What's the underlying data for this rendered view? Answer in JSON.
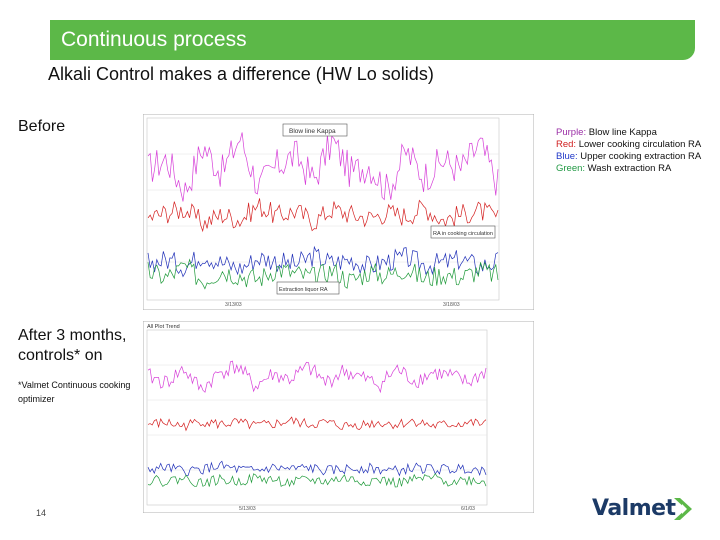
{
  "header": {
    "title": "Continuous process"
  },
  "subtitle": "Alkali Control makes a difference (HW Lo solids)",
  "labels": {
    "before": "Before",
    "after_line1": "After 3 months,",
    "after_line2": "controls* on",
    "footnote_line1": "*Valmet Continuous cooking",
    "footnote_line2": "optimizer"
  },
  "legend": [
    {
      "key": "Purple:",
      "text": " Blow line Kappa",
      "color": "#9b2fa6"
    },
    {
      "key": "Red:",
      "text": " Lower cooking circulation RA",
      "color": "#d02020"
    },
    {
      "key": "Blue:",
      "text": " Upper cooking extraction RA",
      "color": "#2038c8"
    },
    {
      "key": "Green:",
      "text": " Wash extraction RA",
      "color": "#229944"
    }
  ],
  "chart_before": {
    "annotations": [
      "Blow line Kappa",
      "RA in cooking circulation",
      "Extraction liquor RA"
    ],
    "x_ticks": [
      "3/13/03",
      "3/18/03"
    ]
  },
  "chart_after": {
    "header_left": "All Plot Trend",
    "x_ticks": [
      "5/13/03",
      "6/1/03"
    ]
  },
  "page_number": "14",
  "logo": {
    "text": "Valmet",
    "color": "#1c3a66",
    "accent": "#5cb848"
  },
  "colors": {
    "header": "#5cb848",
    "purple": "#d63fd8",
    "red": "#d42020",
    "blue": "#2030b8",
    "green": "#1f9a3a"
  },
  "chart_data": [
    {
      "type": "line",
      "title": "",
      "series": [
        {
          "name": "Blow line Kappa",
          "values": [
            0.72,
            0.78,
            0.6,
            0.85,
            0.7,
            0.9,
            0.62,
            0.74,
            0.8,
            0.66,
            0.88,
            0.7,
            0.75,
            0.6,
            0.82,
            0.68,
            0.77,
            0.72,
            0.86,
            0.64
          ]
        },
        {
          "name": "Lower cooking circulation RA",
          "values": [
            0.45,
            0.48,
            0.5,
            0.42,
            0.47,
            0.44,
            0.52,
            0.46,
            0.49,
            0.43,
            0.5,
            0.47,
            0.45,
            0.48,
            0.46,
            0.51,
            0.44,
            0.47,
            0.49,
            0.45
          ]
        },
        {
          "name": "Upper cooking extraction RA",
          "values": [
            0.2,
            0.22,
            0.18,
            0.25,
            0.2,
            0.17,
            0.23,
            0.21,
            0.19,
            0.24,
            0.2,
            0.22,
            0.18,
            0.21,
            0.23,
            0.19,
            0.2,
            0.22,
            0.18,
            0.21
          ]
        },
        {
          "name": "Wash extraction RA",
          "values": [
            0.15,
            0.12,
            0.18,
            0.1,
            0.16,
            0.13,
            0.11,
            0.17,
            0.14,
            0.12,
            0.16,
            0.1,
            0.15,
            0.13,
            0.17,
            0.11,
            0.14,
            0.12,
            0.16,
            0.13
          ]
        }
      ]
    },
    {
      "type": "line",
      "title": "",
      "series": [
        {
          "name": "Blow line Kappa",
          "values": [
            0.74,
            0.7,
            0.78,
            0.66,
            0.76,
            0.8,
            0.68,
            0.75,
            0.72,
            0.79,
            0.7,
            0.77,
            0.73,
            0.69,
            0.78,
            0.71,
            0.76,
            0.74,
            0.7,
            0.77
          ]
        },
        {
          "name": "Lower cooking circulation RA",
          "values": [
            0.46,
            0.47,
            0.45,
            0.48,
            0.46,
            0.47,
            0.45,
            0.46,
            0.48,
            0.46,
            0.47,
            0.45,
            0.46,
            0.47,
            0.46,
            0.48,
            0.45,
            0.46,
            0.47,
            0.46
          ]
        },
        {
          "name": "Upper cooking extraction RA",
          "values": [
            0.2,
            0.21,
            0.19,
            0.2,
            0.22,
            0.2,
            0.19,
            0.21,
            0.2,
            0.21,
            0.19,
            0.2,
            0.21,
            0.2,
            0.19,
            0.21,
            0.2,
            0.2,
            0.21,
            0.19
          ]
        },
        {
          "name": "Wash extraction RA",
          "values": [
            0.14,
            0.13,
            0.15,
            0.12,
            0.14,
            0.13,
            0.15,
            0.14,
            0.12,
            0.14,
            0.13,
            0.15,
            0.13,
            0.14,
            0.12,
            0.14,
            0.15,
            0.13,
            0.14,
            0.13
          ]
        }
      ]
    }
  ]
}
